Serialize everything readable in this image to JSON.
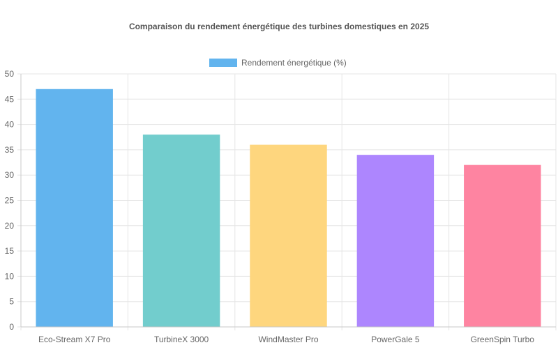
{
  "chart_data": {
    "type": "bar",
    "title": "Comparaison du rendement énergétique des turbines domestiques en 2025",
    "xlabel": "",
    "ylabel": "",
    "categories": [
      "Eco-Stream X7 Pro",
      "TurbineX 3000",
      "WindMaster Pro",
      "PowerGale 5",
      "GreenSpin Turbo"
    ],
    "series": [
      {
        "name": "Rendement énergétique (%)",
        "values": [
          47,
          38,
          36,
          34,
          32
        ]
      }
    ],
    "ylim": [
      0,
      50
    ],
    "yticks": [
      0,
      5,
      10,
      15,
      20,
      25,
      30,
      35,
      40,
      45,
      50
    ],
    "grid": true,
    "legend_position": "top",
    "colors": [
      "#62b4ee",
      "#72cdcd",
      "#fed67e",
      "#ad86fe",
      "#fe84a1"
    ]
  }
}
